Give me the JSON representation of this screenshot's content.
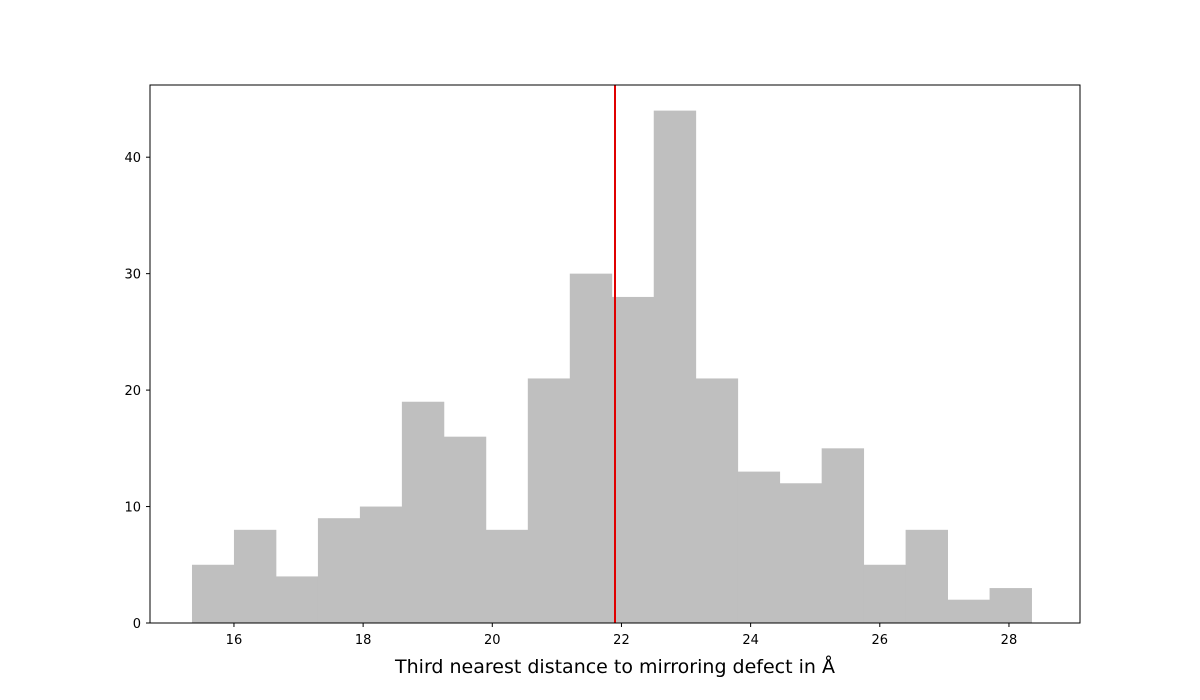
{
  "chart_data": {
    "type": "bar",
    "subtype": "histogram",
    "title": "",
    "xlabel": "Third nearest distance to mirroring defect in Å",
    "ylabel": "",
    "bin_edges": [
      15.35,
      16.0,
      16.65,
      17.3,
      17.95,
      18.6,
      19.25,
      19.9,
      20.55,
      21.2,
      21.85,
      22.5,
      23.15,
      23.8,
      24.45,
      25.1,
      25.75,
      26.4,
      27.05,
      27.7,
      28.35
    ],
    "series": [
      {
        "values": [
          5,
          8,
          4,
          9,
          10,
          19,
          16,
          8,
          21,
          30,
          28,
          44,
          21,
          13,
          12,
          15,
          5,
          8,
          2,
          3
        ]
      }
    ],
    "xlim": [
      14.7,
      29.1
    ],
    "ylim": [
      0,
      46.2
    ],
    "xticks": [
      "16",
      "18",
      "20",
      "22",
      "24",
      "26",
      "28"
    ],
    "yticks": [
      "0",
      "10",
      "20",
      "30",
      "40"
    ],
    "reference_line": {
      "x": 21.9,
      "color": "#e00000"
    },
    "bar_color": "#bfbfbf",
    "grid": false,
    "legend": "none"
  }
}
